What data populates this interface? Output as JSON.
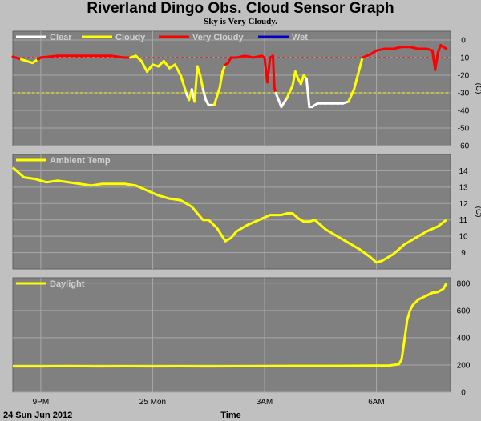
{
  "title": "Riverland Dingo Obs. Cloud Sensor Graph",
  "subtitle": "Sky is Very Cloudy.",
  "colors": {
    "panel_bg": "#808080",
    "grid": "#a8a8a8",
    "clear": "#ffffff",
    "cloudy": "#ffff00",
    "very_cloudy": "#ff0000",
    "wet": "#0000cc",
    "threshold_red": "#ff0000",
    "threshold_yellow": "#ffff00"
  },
  "x_axis": {
    "label": "Time",
    "date_label": "24 Sun Jun 2012",
    "ticks": [
      {
        "h": 1,
        "label": "9PM"
      },
      {
        "h": 5,
        "label": "25 Mon"
      },
      {
        "h": 9,
        "label": "3AM"
      },
      {
        "h": 13,
        "label": "6AM"
      }
    ]
  },
  "chart_data": [
    {
      "type": "line",
      "name": "cloud",
      "ylabel": "(C)",
      "ylim": [
        -60,
        5
      ],
      "yticks": [
        0,
        -10,
        -20,
        -30,
        -40,
        -50,
        -60
      ],
      "thresholds": [
        {
          "y": -10,
          "color": "red"
        },
        {
          "y": -30,
          "color": "yellow"
        }
      ],
      "legend": [
        "Clear",
        "Cloudy",
        "Very Cloudy",
        "Wet"
      ],
      "x_unit": "hours since 8PM",
      "x": [
        0.0,
        0.3,
        0.5,
        0.7,
        0.8,
        0.9,
        1.0,
        1.3,
        1.6,
        2.0,
        2.5,
        3.0,
        3.5,
        4.0,
        4.2,
        4.4,
        4.6,
        4.8,
        5.0,
        5.2,
        5.4,
        5.6,
        5.8,
        6.0,
        6.2,
        6.3,
        6.4,
        6.5,
        6.6,
        6.7,
        6.8,
        6.9,
        7.0,
        7.2,
        7.4,
        7.5,
        7.6,
        7.7,
        7.8,
        8.0,
        8.3,
        8.6,
        8.9,
        9.0,
        9.1,
        9.2,
        9.3,
        9.35,
        9.4,
        9.6,
        9.8,
        10.0,
        10.1,
        10.2,
        10.3,
        10.4,
        10.5,
        10.6,
        10.7,
        10.8,
        10.9,
        11.0,
        11.2,
        11.4,
        11.6,
        11.8,
        12.0,
        12.2,
        12.5,
        12.8,
        12.9,
        13.0,
        13.3,
        13.6,
        13.9,
        14.2,
        14.5,
        14.8,
        15.0,
        15.1,
        15.2,
        15.3,
        15.5
      ],
      "values": [
        -9.5,
        -11,
        -12,
        -13,
        -12,
        -11,
        -10,
        -9.5,
        -9,
        -9,
        -9,
        -9,
        -9,
        -10,
        -10,
        -9,
        -12,
        -18,
        -14,
        -15,
        -12,
        -16,
        -14,
        -20,
        -30,
        -34,
        -28,
        -35,
        -15,
        -20,
        -28,
        -34,
        -37,
        -37,
        -27,
        -18,
        -14,
        -13,
        -10,
        -10,
        -9,
        -10,
        -9,
        -10,
        -24,
        -10,
        -9,
        -27,
        -30,
        -38,
        -33,
        -26,
        -18,
        -22,
        -25,
        -20,
        -22,
        -38,
        -38,
        -37,
        -36,
        -36,
        -36,
        -36,
        -36,
        -36,
        -35,
        -28,
        -10,
        -8,
        -7,
        -6,
        -5,
        -5,
        -4,
        -4,
        -5,
        -5,
        -6,
        -17,
        -7,
        -3,
        -5
      ],
      "categories": [
        "very_cloudy",
        "very_cloudy",
        "cloudy",
        "cloudy",
        "cloudy",
        "cloudy",
        "very_cloudy",
        "very_cloudy",
        "very_cloudy",
        "very_cloudy",
        "very_cloudy",
        "very_cloudy",
        "very_cloudy",
        "very_cloudy",
        "very_cloudy",
        "cloudy",
        "cloudy",
        "cloudy",
        "cloudy",
        "cloudy",
        "cloudy",
        "cloudy",
        "cloudy",
        "cloudy",
        "cloudy",
        "clear",
        "cloudy",
        "clear",
        "cloudy",
        "cloudy",
        "cloudy",
        "clear",
        "clear",
        "clear",
        "cloudy",
        "cloudy",
        "cloudy",
        "very_cloudy",
        "very_cloudy",
        "very_cloudy",
        "very_cloudy",
        "very_cloudy",
        "very_cloudy",
        "very_cloudy",
        "very_cloudy",
        "very_cloudy",
        "very_cloudy",
        "very_cloudy",
        "very_cloudy",
        "clear",
        "clear",
        "cloudy",
        "cloudy",
        "cloudy",
        "cloudy",
        "cloudy",
        "cloudy",
        "clear",
        "clear",
        "clear",
        "clear",
        "clear",
        "clear",
        "clear",
        "clear",
        "clear",
        "clear",
        "cloudy",
        "cloudy",
        "very_cloudy",
        "very_cloudy",
        "very_cloudy",
        "very_cloudy",
        "very_cloudy",
        "very_cloudy",
        "very_cloudy",
        "very_cloudy",
        "very_cloudy",
        "very_cloudy",
        "very_cloudy",
        "very_cloudy",
        "very_cloudy",
        "very_cloudy"
      ]
    },
    {
      "type": "line",
      "name": "Ambient Temp",
      "ylabel": "(C)",
      "ylim": [
        8,
        15
      ],
      "yticks": [
        14,
        13,
        12,
        11,
        10,
        9
      ],
      "legend": [
        "Ambient Temp"
      ],
      "x": [
        0.0,
        0.2,
        0.4,
        0.8,
        1.2,
        1.6,
        2.0,
        2.4,
        2.8,
        3.2,
        3.6,
        4.0,
        4.4,
        4.8,
        5.2,
        5.6,
        6.0,
        6.4,
        6.8,
        7.0,
        7.3,
        7.6,
        7.8,
        8.0,
        8.4,
        8.8,
        9.2,
        9.6,
        9.8,
        10.0,
        10.2,
        10.4,
        10.6,
        10.8,
        11.2,
        11.6,
        12.0,
        12.4,
        12.8,
        13.0,
        13.2,
        13.6,
        14.0,
        14.4,
        14.8,
        15.2,
        15.5
      ],
      "values": [
        14.2,
        13.9,
        13.6,
        13.5,
        13.3,
        13.4,
        13.3,
        13.2,
        13.1,
        13.2,
        13.2,
        13.2,
        13.1,
        12.8,
        12.5,
        12.3,
        12.2,
        11.8,
        11.0,
        11.0,
        10.5,
        9.7,
        9.9,
        10.3,
        10.7,
        11.0,
        11.3,
        11.3,
        11.4,
        11.4,
        11.1,
        10.9,
        10.9,
        11.0,
        10.4,
        10.0,
        9.6,
        9.2,
        8.7,
        8.4,
        8.5,
        8.9,
        9.5,
        9.9,
        10.3,
        10.6,
        11.0
      ]
    },
    {
      "type": "line",
      "name": "Daylight",
      "ylim": [
        0,
        840
      ],
      "yticks": [
        800,
        600,
        400,
        200,
        0
      ],
      "legend": [
        "Daylight"
      ],
      "x": [
        0.0,
        1.0,
        2.0,
        3.0,
        4.0,
        5.0,
        6.0,
        7.0,
        8.0,
        9.0,
        10.0,
        11.0,
        12.0,
        13.0,
        13.4,
        13.8,
        13.9,
        14.0,
        14.1,
        14.2,
        14.3,
        14.5,
        14.8,
        15.0,
        15.2,
        15.4,
        15.5
      ],
      "values": [
        190,
        190,
        192,
        190,
        191,
        190,
        191,
        190,
        191,
        192,
        193,
        193,
        194,
        195,
        195,
        205,
        240,
        380,
        530,
        600,
        640,
        680,
        710,
        730,
        735,
        760,
        800
      ]
    }
  ]
}
